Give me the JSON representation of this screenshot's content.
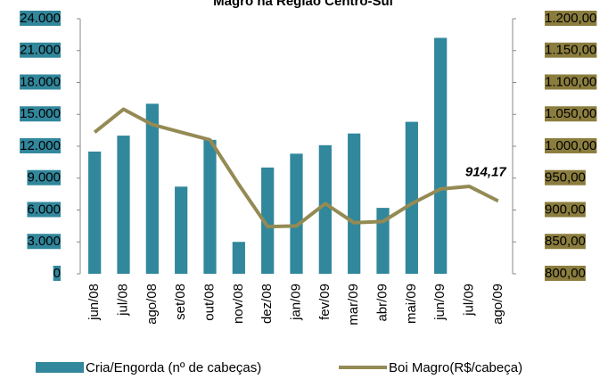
{
  "chart_data": {
    "type": "bar-line",
    "title": "Magro na Região Centro-Sul",
    "categories": [
      "jun/08",
      "jul/08",
      "ago/08",
      "set/08",
      "out/08",
      "nov/08",
      "dez/08",
      "jan/09",
      "fev/09",
      "mar/09",
      "abr/09",
      "mai/09",
      "jun/09",
      "jul/09",
      "ago/09"
    ],
    "series": [
      {
        "name": "Cria/Engorda (nº de cabeças)",
        "type": "bar",
        "color": "#31879c",
        "values": [
          11500,
          13000,
          16000,
          8200,
          12600,
          3000,
          10000,
          11300,
          12100,
          13200,
          6200,
          14300,
          22200,
          null,
          null
        ]
      },
      {
        "name": "Boi Magro(R$/cabeça)",
        "type": "line",
        "axis": "y2",
        "color": "#948a54",
        "values": [
          1022,
          1058,
          1034,
          1022,
          1010,
          940,
          874,
          875,
          910,
          880,
          882,
          910,
          933,
          937,
          914.17
        ],
        "value_labels": [
          null,
          null,
          null,
          null,
          null,
          null,
          null,
          null,
          null,
          null,
          null,
          null,
          null,
          null,
          "914,17"
        ]
      }
    ],
    "ylim": [
      0,
      24000
    ],
    "yticks": [
      {
        "value": 0,
        "label": "0"
      },
      {
        "value": 3000,
        "label": "3.000"
      },
      {
        "value": 6000,
        "label": "6.000"
      },
      {
        "value": 9000,
        "label": "9.000"
      },
      {
        "value": 12000,
        "label": "12.000"
      },
      {
        "value": 15000,
        "label": "15.000"
      },
      {
        "value": 18000,
        "label": "18.000"
      },
      {
        "value": 21000,
        "label": "21.000"
      },
      {
        "value": 24000,
        "label": "24.000"
      }
    ],
    "y2lim": [
      800,
      1200
    ],
    "y2ticks": [
      {
        "value": 800,
        "label": "800,00"
      },
      {
        "value": 850,
        "label": "850,00"
      },
      {
        "value": 900,
        "label": "900,00"
      },
      {
        "value": 950,
        "label": "950,00"
      },
      {
        "value": 1000,
        "label": "1.000,00"
      },
      {
        "value": 1050,
        "label": "1.050,00"
      },
      {
        "value": 1100,
        "label": "1.100,00"
      },
      {
        "value": 1150,
        "label": "1.150,00"
      },
      {
        "value": 1200,
        "label": "1.200,00"
      }
    ],
    "ytick_box_color": "#31879c",
    "y2tick_box_color": "#8b7d3e",
    "legend": "bottom"
  }
}
